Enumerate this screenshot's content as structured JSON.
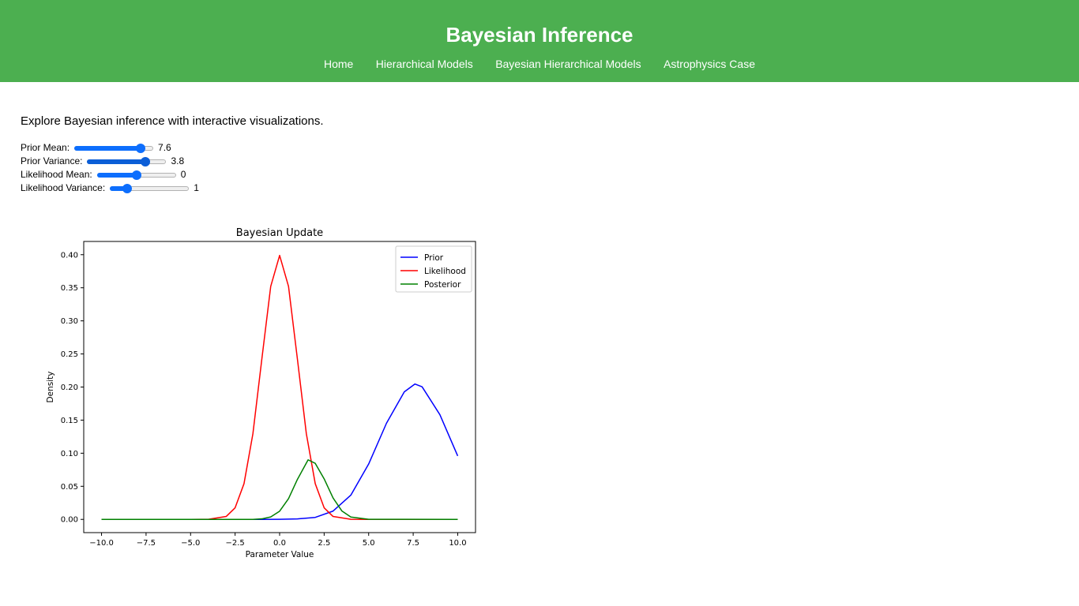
{
  "header": {
    "title": "Bayesian Inference",
    "nav": [
      "Home",
      "Hierarchical Models",
      "Bayesian Hierarchical Models",
      "Astrophysics Case"
    ]
  },
  "intro": "Explore Bayesian inference with interactive visualizations.",
  "controls": [
    {
      "label": "Prior Mean:",
      "value": "7.6",
      "fraction": 0.84
    },
    {
      "label": "Prior Variance:",
      "value": "3.8",
      "fraction": 0.74
    },
    {
      "label": "Likelihood Mean:",
      "value": "0",
      "fraction": 0.5
    },
    {
      "label": "Likelihood Variance:",
      "value": "1",
      "fraction": 0.22
    }
  ],
  "colors": {
    "header": "#4caf50",
    "slider": "#0d6efd"
  },
  "chart_data": {
    "type": "line",
    "title": "Bayesian Update",
    "xlabel": "Parameter Value",
    "ylabel": "Density",
    "xlim": [
      -11,
      11
    ],
    "ylim": [
      -0.02,
      0.42
    ],
    "xticks": [
      "−10.0",
      "−7.5",
      "−5.0",
      "−2.5",
      "0.0",
      "2.5",
      "5.0",
      "7.5",
      "10.0"
    ],
    "xtick_values": [
      -10,
      -7.5,
      -5,
      -2.5,
      0,
      2.5,
      5,
      7.5,
      10
    ],
    "yticks": [
      "0.00",
      "0.05",
      "0.10",
      "0.15",
      "0.20",
      "0.25",
      "0.30",
      "0.35",
      "0.40"
    ],
    "ytick_values": [
      0,
      0.05,
      0.1,
      0.15,
      0.2,
      0.25,
      0.3,
      0.35,
      0.4
    ],
    "legend_position": "top-right",
    "grid": false,
    "series": [
      {
        "name": "Prior",
        "color": "#0000ff",
        "x": [
          -10,
          -5,
          -2,
          -1,
          0,
          1,
          2,
          3,
          4,
          5,
          6,
          7,
          7.6,
          8,
          9,
          10
        ],
        "y": [
          0,
          0,
          0,
          0,
          0.0001,
          0.0007,
          0.003,
          0.0125,
          0.0367,
          0.0837,
          0.1453,
          0.1927,
          0.2046,
          0.2004,
          0.1582,
          0.0959
        ]
      },
      {
        "name": "Likelihood",
        "color": "#ff0000",
        "x": [
          -10,
          -5,
          -4,
          -3,
          -2.5,
          -2,
          -1.5,
          -1,
          -0.5,
          0,
          0.5,
          1,
          1.5,
          2,
          2.5,
          3,
          4,
          5,
          10
        ],
        "y": [
          0,
          0,
          0.0001,
          0.0044,
          0.0175,
          0.054,
          0.1295,
          0.242,
          0.3521,
          0.3989,
          0.3521,
          0.242,
          0.1295,
          0.054,
          0.0175,
          0.0044,
          0.0001,
          0,
          0
        ]
      },
      {
        "name": "Posterior",
        "color": "#008000",
        "x": [
          -10,
          -1.5,
          -1,
          -0.5,
          0,
          0.5,
          1,
          1.6,
          2,
          2.5,
          3,
          3.5,
          4,
          5,
          10
        ],
        "y": [
          0,
          0,
          0.0008,
          0.0037,
          0.0124,
          0.0313,
          0.0605,
          0.09,
          0.0847,
          0.0613,
          0.0324,
          0.0126,
          0.0036,
          0.0001,
          0
        ]
      }
    ]
  }
}
